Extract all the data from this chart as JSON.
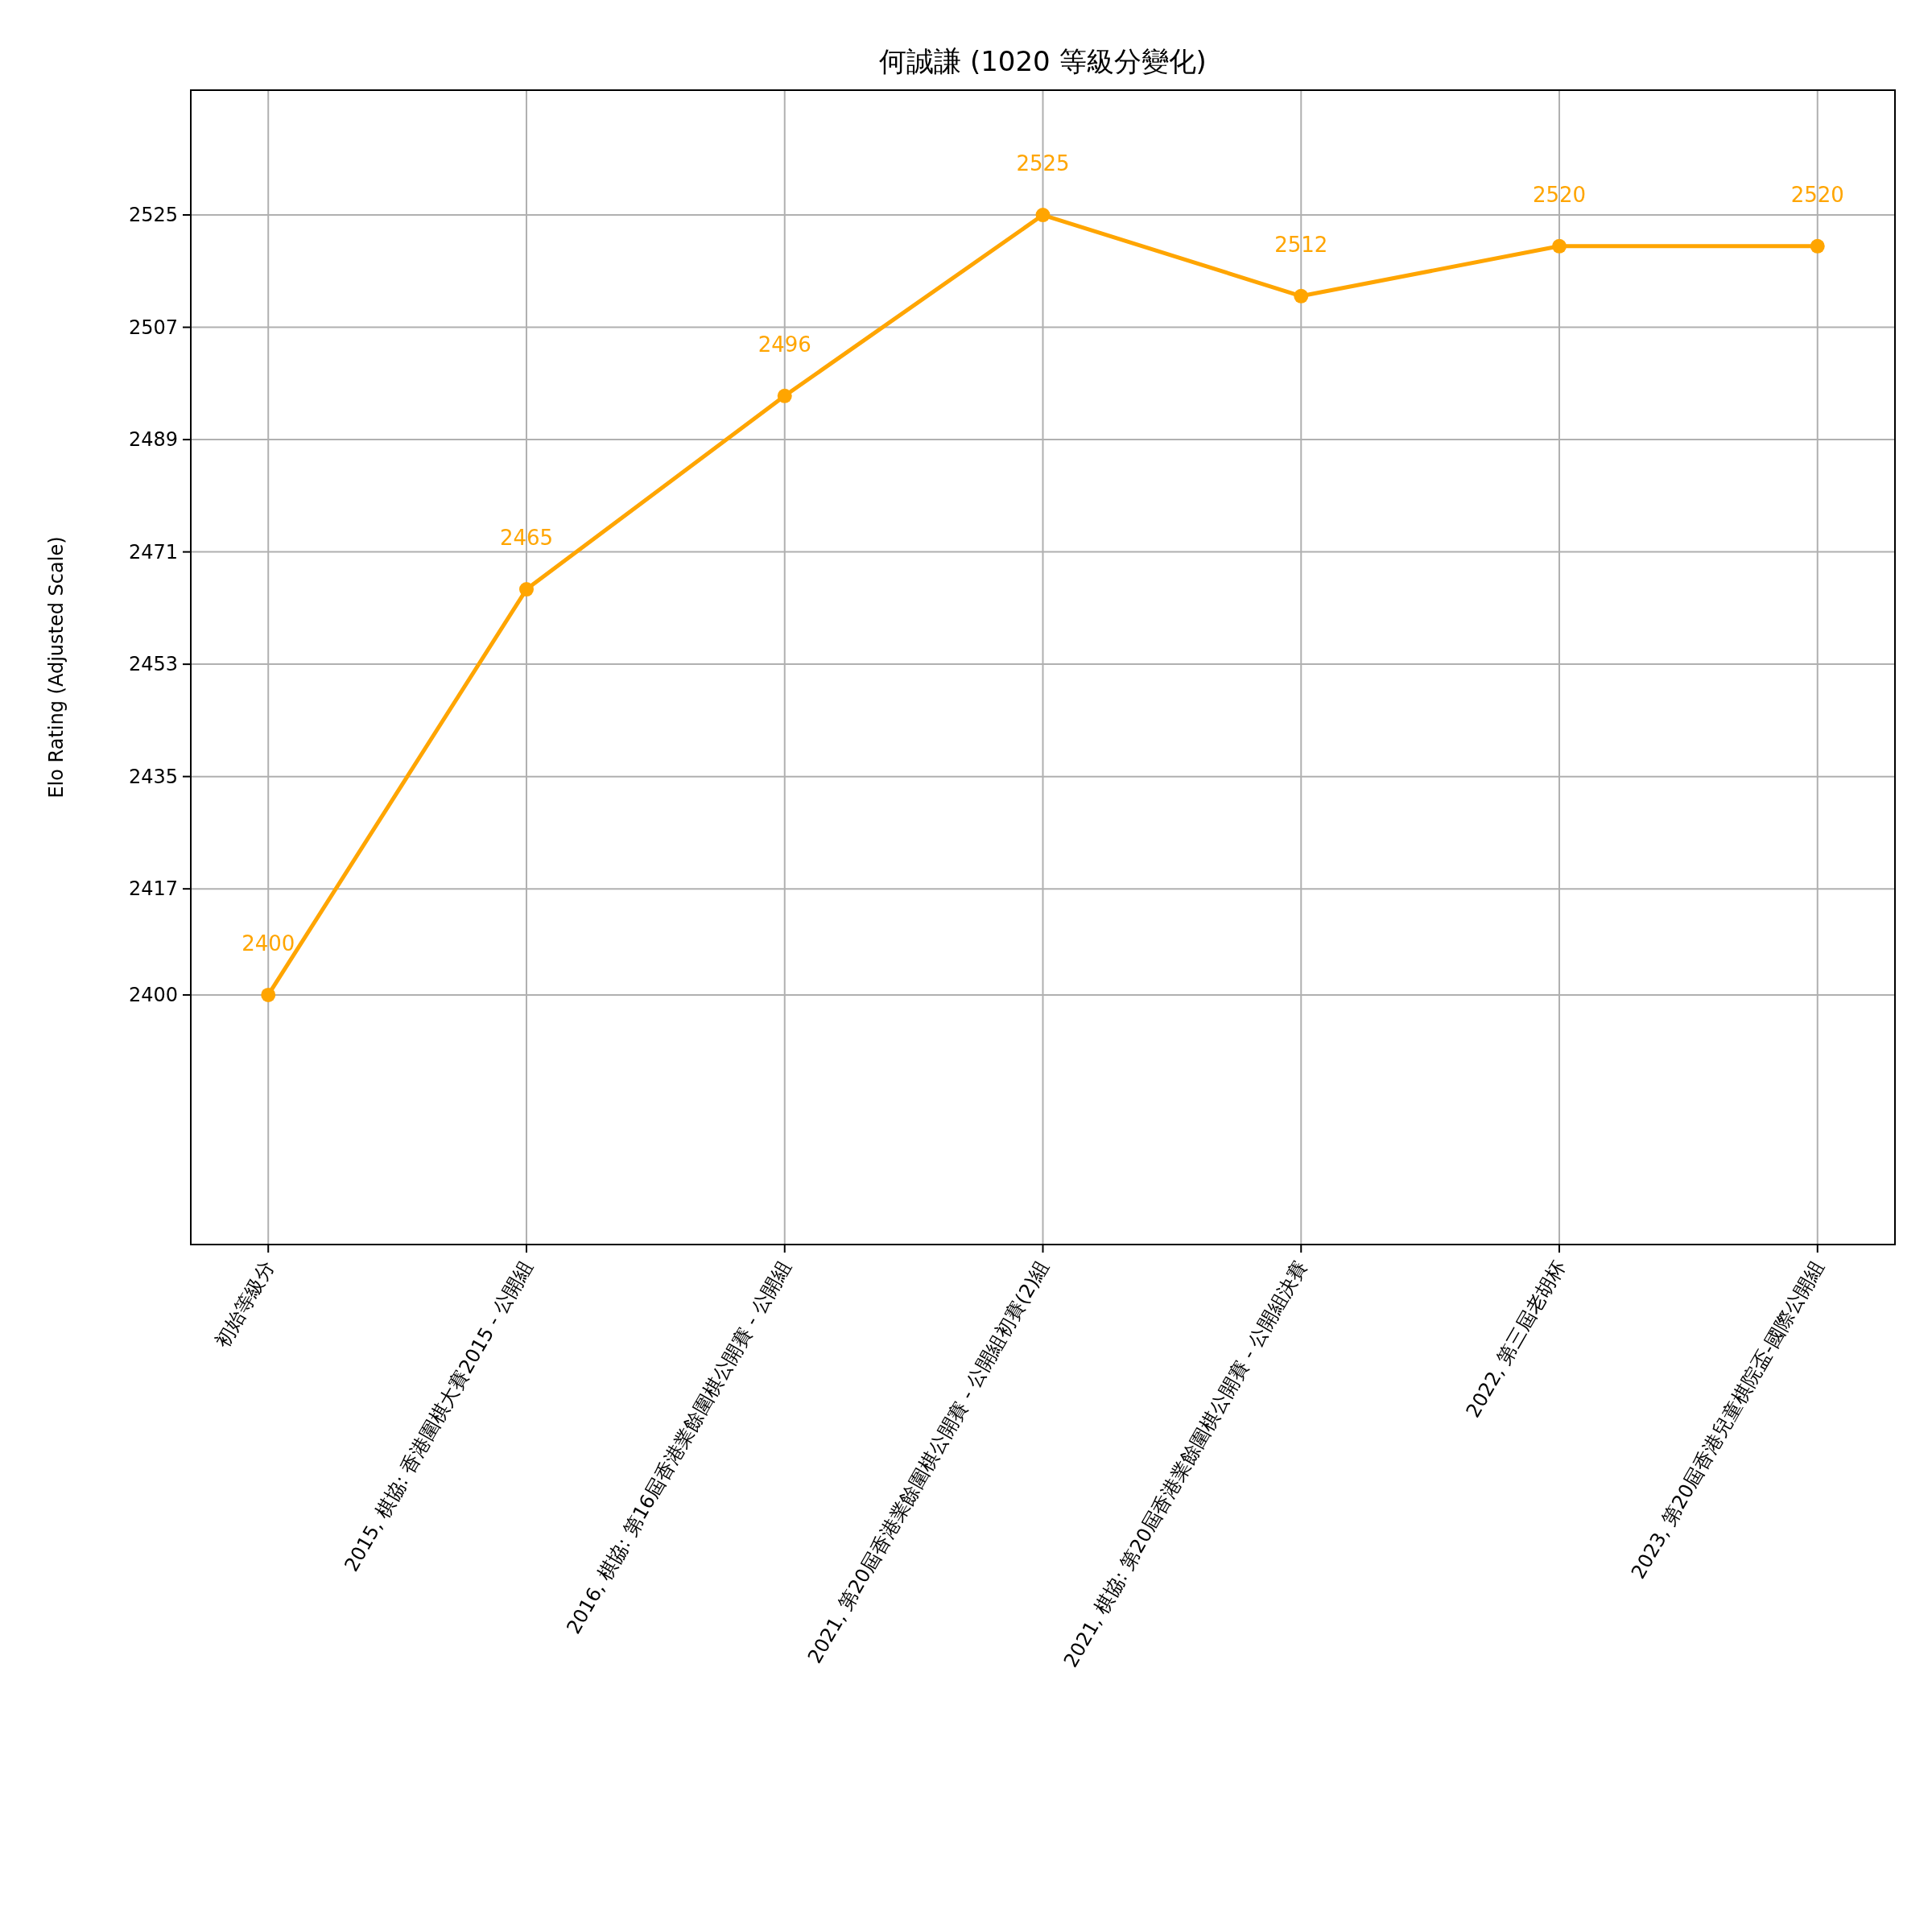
{
  "chart_data": {
    "type": "line",
    "title": "何誠謙 (1020 等級分變化)",
    "ylabel": "Elo Rating (Adjusted Scale)",
    "categories": [
      "初始等級分",
      "2015, 棋協: 香港圍棋大賽2015 - 公開組",
      "2016, 棋協: 第16屆香港業餘圍棋公開賽 - 公開組",
      "2021, 第20屆香港業餘圍棋公開賽 - 公開組初賽(2)組",
      "2021, 棋協: 第20屆香港業餘圍棋公開賽 - 公開組決賽",
      "2022, 第三屆老胡杯",
      "2023, 第20屆香港兒童棋院盃-國際公開組"
    ],
    "series": [
      {
        "color": "#ffa500",
        "values": [
          2400,
          2465,
          2496,
          2525,
          2512,
          2520,
          2520
        ]
      }
    ],
    "ylim": [
      2360,
      2545
    ],
    "yticks": [
      2400,
      2417,
      2435,
      2453,
      2471,
      2489,
      2507,
      2525
    ],
    "data_labels": true,
    "grid": true,
    "marker": "circle",
    "line_style": "solid"
  }
}
